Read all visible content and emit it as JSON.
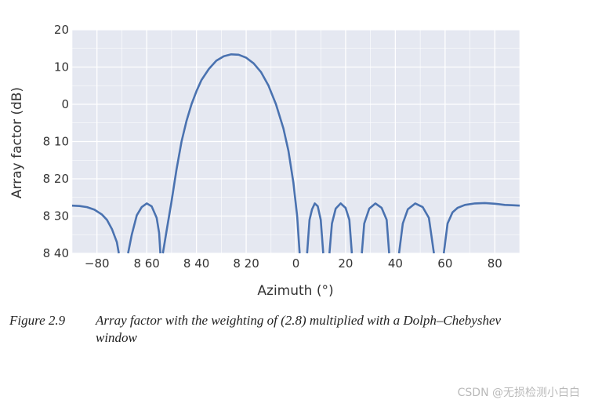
{
  "chart_data": {
    "type": "line",
    "xlabel": "Azimuth (°)",
    "ylabel": "Array factor (dB)",
    "xlim": [
      -90,
      90
    ],
    "ylim": [
      -40,
      20
    ],
    "x_ticks": [
      -80,
      -60,
      -40,
      -20,
      0,
      20,
      40,
      60,
      80
    ],
    "x_tick_labels": [
      "−80",
      "8 60",
      "8 40",
      "8 20",
      "0",
      "20",
      "40",
      "60",
      "80"
    ],
    "y_ticks": [
      20,
      10,
      0,
      -10,
      -20,
      -30,
      -40
    ],
    "y_tick_labels": [
      "20",
      "10",
      "0",
      "8 10",
      "8 20",
      "8 30",
      "8 40"
    ],
    "grid": true,
    "background": "#e5e8f1",
    "line_color": "#4a72b0",
    "series": [
      {
        "segments": [
          [
            [
              -90,
              -27.2
            ],
            [
              -87,
              -27.3
            ],
            [
              -84,
              -27.6
            ],
            [
              -81,
              -28.3
            ],
            [
              -78,
              -29.6
            ],
            [
              -76,
              -31.0
            ],
            [
              -74,
              -33.5
            ],
            [
              -72,
              -37.0
            ],
            [
              -71.2,
              -40
            ]
          ],
          [
            [
              -67.5,
              -40
            ],
            [
              -66,
              -35
            ],
            [
              -64,
              -29.8
            ],
            [
              -62,
              -27.6
            ],
            [
              -60,
              -26.6
            ],
            [
              -58,
              -27.4
            ],
            [
              -56,
              -30.5
            ],
            [
              -55,
              -34.5
            ],
            [
              -54.5,
              -40
            ]
          ],
          [
            [
              -53.5,
              -40
            ],
            [
              -52,
              -34
            ],
            [
              -50,
              -26
            ],
            [
              -48,
              -17.5
            ],
            [
              -46,
              -10
            ],
            [
              -44,
              -4.5
            ],
            [
              -42,
              0
            ],
            [
              -40,
              3.5
            ],
            [
              -38,
              6.5
            ],
            [
              -35,
              9.5
            ],
            [
              -32,
              11.7
            ],
            [
              -29,
              12.9
            ],
            [
              -26,
              13.4
            ],
            [
              -23,
              13.3
            ],
            [
              -20,
              12.5
            ],
            [
              -17,
              11.0
            ],
            [
              -14,
              8.6
            ],
            [
              -11,
              5.0
            ],
            [
              -8,
              0
            ],
            [
              -5,
              -6.5
            ],
            [
              -3,
              -12.5
            ],
            [
              -1,
              -21
            ],
            [
              0.5,
              -30
            ],
            [
              1.5,
              -40
            ]
          ],
          [
            [
              4.5,
              -40
            ],
            [
              5.5,
              -31
            ],
            [
              6.5,
              -28.2
            ],
            [
              7.6,
              -26.6
            ],
            [
              8.8,
              -27.4
            ],
            [
              10,
              -31
            ],
            [
              11,
              -40
            ]
          ],
          [
            [
              13.5,
              -40
            ],
            [
              14.5,
              -32
            ],
            [
              16,
              -28
            ],
            [
              18,
              -26.6
            ],
            [
              20,
              -27.8
            ],
            [
              21.5,
              -31
            ],
            [
              22.5,
              -40
            ]
          ],
          [
            [
              26.5,
              -40
            ],
            [
              27.5,
              -32
            ],
            [
              29.5,
              -28
            ],
            [
              32,
              -26.6
            ],
            [
              34.5,
              -27.8
            ],
            [
              36.5,
              -31
            ],
            [
              37.5,
              -40
            ]
          ],
          [
            [
              41.5,
              -40
            ],
            [
              43,
              -32
            ],
            [
              45,
              -28.2
            ],
            [
              48,
              -26.6
            ],
            [
              51,
              -27.6
            ],
            [
              53.5,
              -30.5
            ],
            [
              55.5,
              -40
            ]
          ],
          [
            [
              59.5,
              -40
            ],
            [
              61,
              -32
            ],
            [
              63,
              -29
            ],
            [
              65,
              -27.8
            ],
            [
              68,
              -27.0
            ],
            [
              72,
              -26.6
            ],
            [
              76,
              -26.5
            ],
            [
              80,
              -26.7
            ],
            [
              84,
              -27.0
            ],
            [
              87,
              -27.1
            ],
            [
              90,
              -27.2
            ]
          ]
        ]
      }
    ]
  },
  "caption": {
    "label": "Figure 2.9",
    "text": "Array factor with the weighting of (2.8) multiplied with a Dolph–Chebyshev window"
  },
  "watermark": "CSDN @无损检测小白白"
}
